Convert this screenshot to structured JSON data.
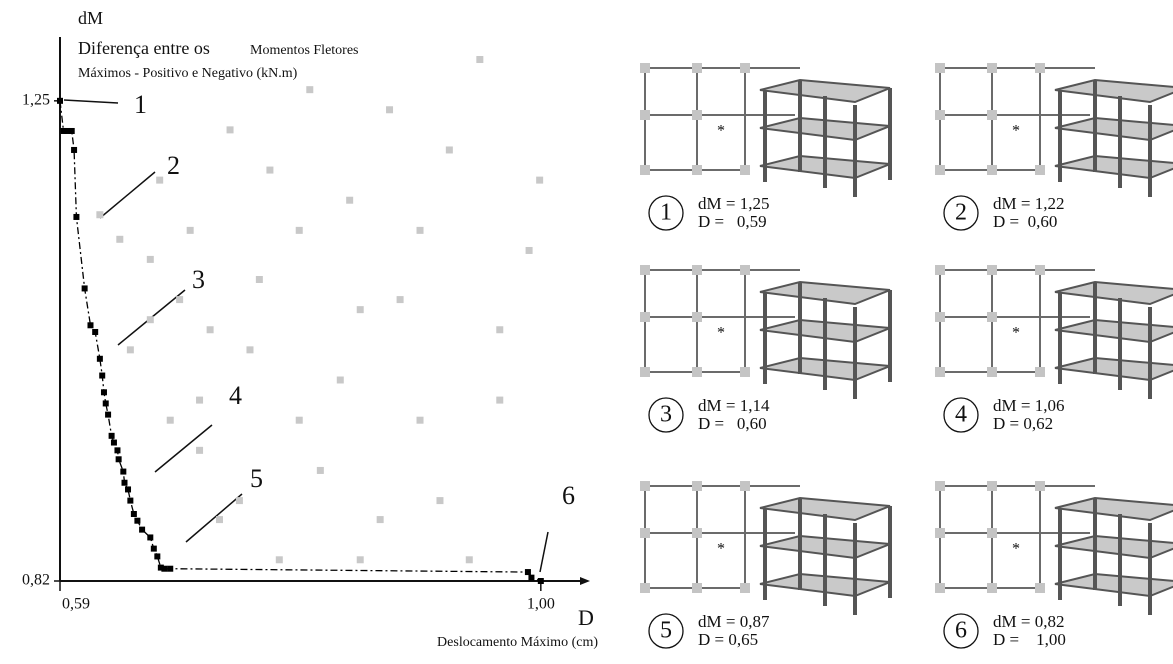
{
  "chart_data": {
    "type": "scatter",
    "y_label_lines": [
      "dM",
      "Diferença entre os",
      "Momentos Fletores",
      "Máximos - Positivo e Negativo (kN.m)"
    ],
    "x_label": "D",
    "x_label_sub": "Deslocamento Máximo (cm)",
    "xlim": [
      0.59,
      1.03
    ],
    "ylim": [
      0.82,
      1.3
    ],
    "xticks": [
      {
        "value": 0.59,
        "label": "0,59"
      },
      {
        "value": 1.0,
        "label": "1,00"
      }
    ],
    "yticks": [
      {
        "value": 0.82,
        "label": "0,82"
      },
      {
        "value": 1.25,
        "label": "1,25"
      }
    ],
    "annotations": [
      "1",
      "2",
      "3",
      "4",
      "5",
      "6"
    ],
    "series": [
      {
        "color": "#c8c8c8",
        "line_style": "none",
        "x": [
          0.624,
          0.641,
          0.667,
          0.692,
          0.718,
          0.752,
          0.794,
          0.837,
          0.88,
          0.922,
          0.965,
          0.99,
          0.709,
          0.743,
          0.777,
          0.812,
          0.863,
          0.897,
          0.939,
          0.675,
          0.735,
          0.803,
          0.871,
          0.948,
          0.999,
          0.709,
          0.76,
          0.829,
          0.65,
          0.684,
          0.726,
          0.846,
          0.914,
          0.965,
          0.769,
          0.667,
          0.701,
          0.897,
          0.794,
          0.846
        ],
        "values": [
          1.148,
          1.126,
          1.108,
          1.072,
          1.045,
          1.027,
          1.134,
          1.161,
          1.072,
          1.206,
          0.982,
          1.116,
          0.937,
          0.892,
          0.839,
          0.919,
          0.875,
          0.964,
          0.839,
          1.179,
          1.224,
          1.26,
          1.242,
          1.287,
          1.179,
          0.982,
          1.09,
          1.0,
          1.027,
          0.964,
          0.875,
          0.839,
          0.892,
          1.045,
          1.188,
          1.054,
          1.134,
          1.134,
          0.964,
          1.063
        ]
      },
      {
        "color": "#000000",
        "line_style": "dashdot",
        "x": [
          0.59,
          0.593,
          0.596,
          0.6,
          0.602,
          0.604,
          0.611,
          0.616,
          0.62,
          0.624,
          0.626,
          0.6275,
          0.629,
          0.631,
          0.634,
          0.636,
          0.639,
          0.64,
          0.644,
          0.645,
          0.648,
          0.65,
          0.653,
          0.656,
          0.66,
          0.667,
          0.67,
          0.673,
          0.676,
          0.679,
          0.684,
          0.989,
          0.992,
          1.0
        ],
        "values": [
          1.25,
          1.223,
          1.223,
          1.223,
          1.206,
          1.146,
          1.082,
          1.049,
          1.043,
          1.019,
          1.004,
          0.989,
          0.979,
          0.969,
          0.95,
          0.944,
          0.937,
          0.929,
          0.918,
          0.908,
          0.902,
          0.892,
          0.88,
          0.874,
          0.866,
          0.859,
          0.849,
          0.842,
          0.832,
          0.831,
          0.831,
          0.828,
          0.823,
          0.82
        ]
      }
    ]
  },
  "panels": [
    {
      "number": "1",
      "dM": "dM = 1,25",
      "D": "D =   0,59"
    },
    {
      "number": "2",
      "dM": "dM = 1,22",
      "D": "D =  0,60"
    },
    {
      "number": "3",
      "dM": "dM = 1,14",
      "D": "D =   0,60"
    },
    {
      "number": "4",
      "dM": "dM = 1,06",
      "D": "D = 0,62"
    },
    {
      "number": "5",
      "dM": "dM = 0,87",
      "D": "D = 0,65"
    },
    {
      "number": "6",
      "dM": "dM = 0,82",
      "D": "D =    1,00"
    }
  ]
}
